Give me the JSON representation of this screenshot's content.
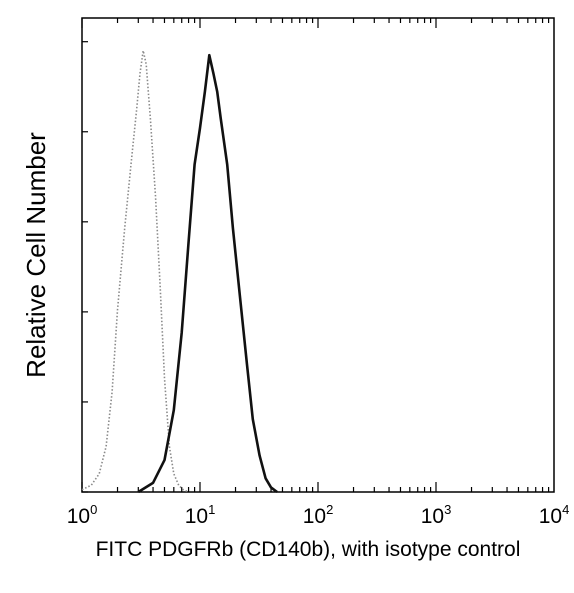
{
  "chart_data": {
    "type": "line",
    "title": "",
    "xlabel": "FITC PDGFRb (CD140b), with isotype control",
    "ylabel": "Relative Cell Number",
    "x_scale": "log",
    "xlim": [
      1,
      10000
    ],
    "ylim": [
      0,
      100
    ],
    "grid": false,
    "legend": "none",
    "x_ticks": [
      {
        "base": "10",
        "exp": "0"
      },
      {
        "base": "10",
        "exp": "1"
      },
      {
        "base": "10",
        "exp": "2"
      },
      {
        "base": "10",
        "exp": "3"
      },
      {
        "base": "10",
        "exp": "4"
      }
    ],
    "series": [
      {
        "style": "dotted",
        "color": "#8a8a8a",
        "x": [
          1.0,
          1.2,
          1.4,
          1.6,
          1.8,
          2.0,
          2.3,
          2.6,
          2.9,
          3.1,
          3.3,
          3.5,
          3.8,
          4.2,
          4.6,
          5.0,
          5.5,
          6.0,
          6.6,
          7.2,
          8.0
        ],
        "y": [
          0.5,
          1.5,
          4,
          10,
          22,
          40,
          58,
          72,
          84,
          92,
          97,
          94,
          82,
          65,
          45,
          25,
          10,
          4,
          1.5,
          0.5,
          0
        ]
      },
      {
        "style": "solid",
        "color": "#111111",
        "x": [
          3.0,
          4.0,
          5.0,
          6.0,
          7.0,
          8.0,
          9.0,
          10.0,
          11.0,
          12.0,
          13.0,
          14.0,
          15.0,
          17.0,
          19.0,
          22.0,
          25.0,
          28.0,
          32.0,
          36.0,
          40.0,
          45.0
        ],
        "y": [
          0,
          2,
          7,
          18,
          35,
          55,
          72,
          80,
          88,
          96,
          92,
          88,
          82,
          72,
          58,
          42,
          28,
          16,
          8,
          3,
          1,
          0
        ]
      }
    ]
  }
}
